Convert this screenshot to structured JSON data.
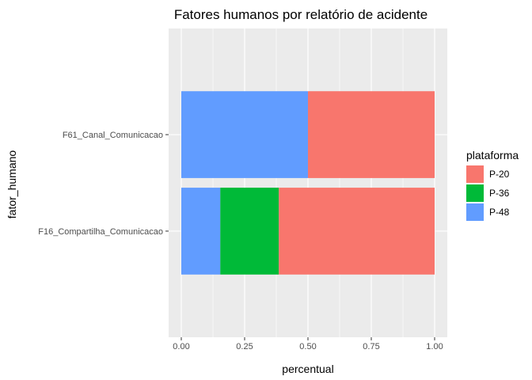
{
  "chart_data": {
    "type": "bar",
    "orientation": "horizontal",
    "stacked": true,
    "title": "Fatores humanos por relatório de acidente",
    "xlabel": "percentual",
    "ylabel": "fator_humano",
    "xlim": [
      0,
      1
    ],
    "x_ticks": [
      "0.00",
      "0.25",
      "0.50",
      "0.75",
      "1.00"
    ],
    "categories": [
      "F61_Canal_Comunicacao",
      "F16_Compartilha_Comunicacao"
    ],
    "series": [
      {
        "name": "P-48",
        "color": "#619CFF",
        "values": [
          0.5,
          0.154
        ]
      },
      {
        "name": "P-36",
        "color": "#00BA38",
        "values": [
          0.0,
          0.231
        ]
      },
      {
        "name": "P-20",
        "color": "#F8766D",
        "values": [
          0.5,
          0.615
        ]
      }
    ],
    "legend": {
      "title": "plataforma",
      "position": "right",
      "items": [
        "P-20",
        "P-36",
        "P-48"
      ]
    },
    "grid": true,
    "panel_background": "#EBEBEB"
  }
}
